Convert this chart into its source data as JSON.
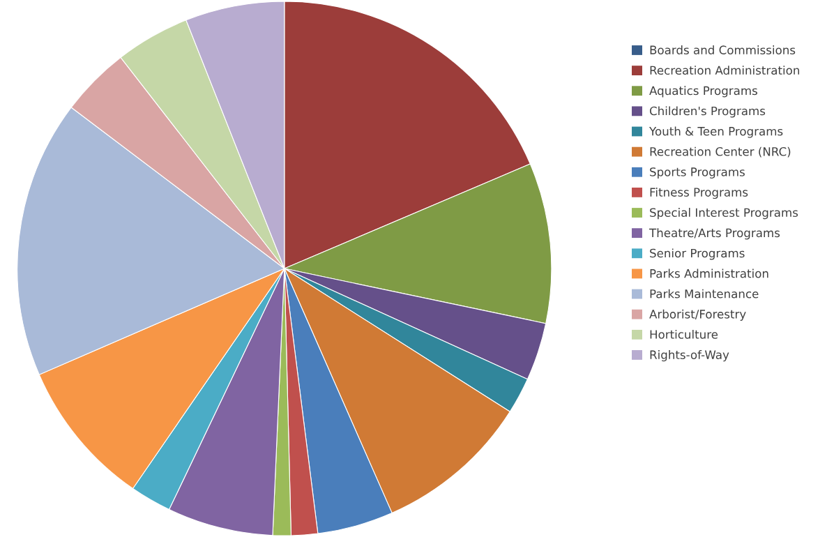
{
  "chart_data": {
    "type": "pie",
    "categories": [
      "Boards and Commissions",
      "Recreation Administration",
      "Aquatics Programs",
      "Children's Programs",
      "Youth & Teen Programs",
      "Recreation Center (NRC)",
      "Sports Programs",
      "Fitness Programs",
      "Special Interest Programs",
      "Theatre/Arts Programs",
      "Senior Programs",
      "Parks Administration",
      "Parks Maintenance",
      "Arborist/Forestry",
      "Horticulture",
      "Rights-of-Way"
    ],
    "values": [
      null,
      18.6,
      9.7,
      3.5,
      2.2,
      9.4,
      4.6,
      1.6,
      1.1,
      6.4,
      2.5,
      8.9,
      16.8,
      4.2,
      4.5,
      6.0
    ],
    "colors": [
      "#385d8a",
      "#9c3d3a",
      "#7f9b45",
      "#65508a",
      "#31869b",
      "#d07a35",
      "#4a7ebb",
      "#c0504d",
      "#9bbb59",
      "#8064a2",
      "#4bacc6",
      "#f79646",
      "#a9bad8",
      "#d9a5a4",
      "#c5d7a7",
      "#b8acd0"
    ],
    "legend": "right"
  }
}
